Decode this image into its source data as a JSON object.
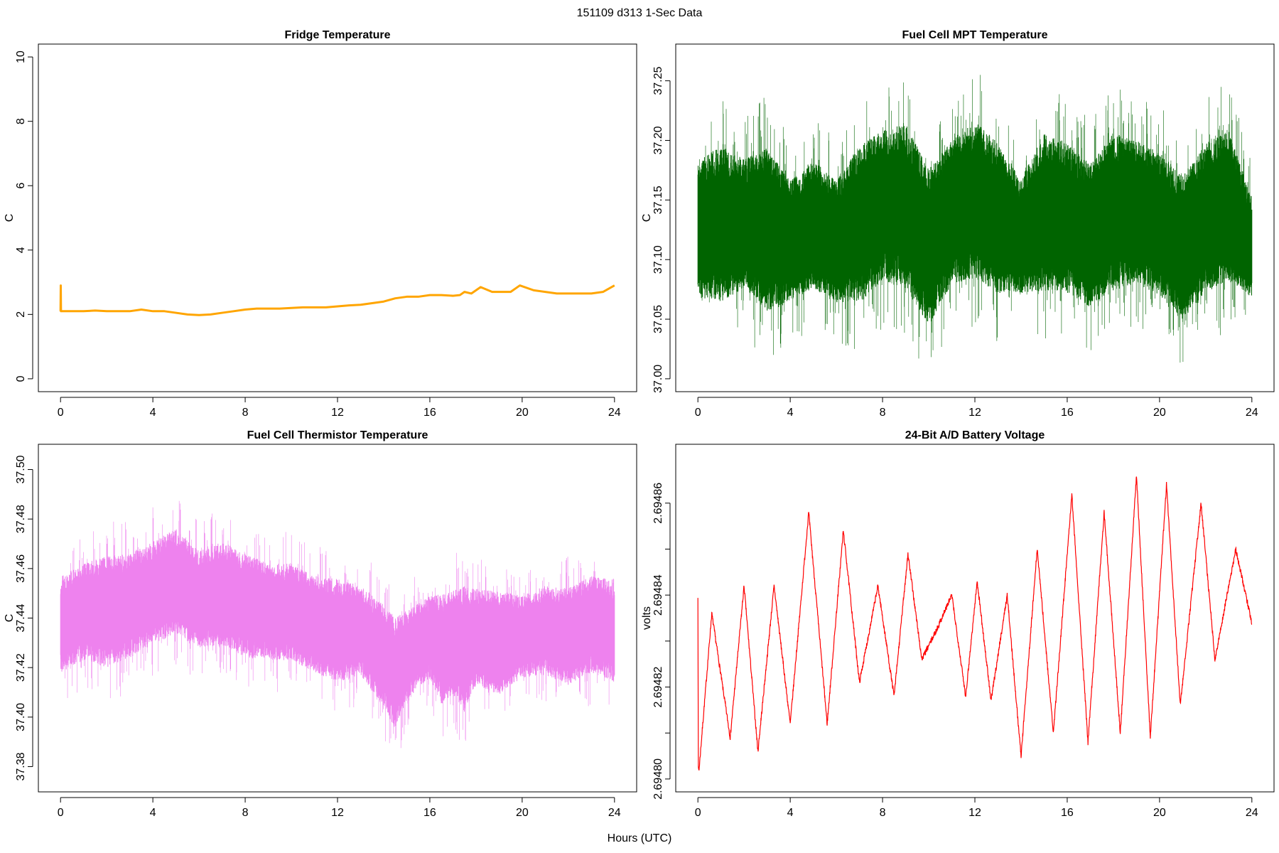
{
  "figure": {
    "title": "151109   d313   1-Sec Data",
    "xlabel": "Hours (UTC)"
  },
  "chart_data": [
    {
      "id": "fridge",
      "type": "line",
      "title": "Fridge Temperature",
      "xlabel": "",
      "ylabel": "C",
      "color": "#FFA500",
      "xlim": [
        0,
        24
      ],
      "ylim": [
        0,
        10
      ],
      "xticks": [
        0,
        4,
        8,
        12,
        16,
        20,
        24
      ],
      "yticks": [
        0,
        2,
        4,
        6,
        8,
        10
      ],
      "ytick_labels": [
        "0",
        "2",
        "4",
        "6",
        "8",
        "10"
      ],
      "series": [
        {
          "name": "Fridge Temperature",
          "x": [
            0,
            0.01,
            0.02,
            0.5,
            1,
            1.5,
            2,
            2.5,
            3,
            3.5,
            4,
            4.5,
            5,
            5.5,
            6,
            6.5,
            7,
            7.5,
            8,
            8.5,
            9,
            9.5,
            10,
            10.5,
            11,
            11.5,
            12,
            12.5,
            13,
            13.5,
            14,
            14.5,
            15,
            15.5,
            16,
            16.5,
            17,
            17.3,
            17.5,
            17.8,
            18.2,
            18.7,
            19.5,
            19.9,
            20.5,
            21,
            21.5,
            22,
            22.5,
            23,
            23.5,
            24
          ],
          "y": [
            2.1,
            2.9,
            2.1,
            2.1,
            2.1,
            2.12,
            2.1,
            2.1,
            2.1,
            2.15,
            2.1,
            2.1,
            2.05,
            2.0,
            1.98,
            2.0,
            2.05,
            2.1,
            2.15,
            2.18,
            2.18,
            2.18,
            2.2,
            2.22,
            2.22,
            2.22,
            2.25,
            2.28,
            2.3,
            2.35,
            2.4,
            2.5,
            2.55,
            2.55,
            2.6,
            2.6,
            2.58,
            2.6,
            2.7,
            2.65,
            2.85,
            2.7,
            2.7,
            2.9,
            2.75,
            2.7,
            2.65,
            2.65,
            2.65,
            2.65,
            2.7,
            2.9
          ]
        }
      ]
    },
    {
      "id": "mpt",
      "type": "line",
      "title": "Fuel Cell MPT Temperature",
      "xlabel": "",
      "ylabel": "C",
      "color": "#006400",
      "xlim": [
        0,
        24
      ],
      "ylim": [
        37.0,
        37.27
      ],
      "xticks": [
        0,
        4,
        8,
        12,
        16,
        20,
        24
      ],
      "yticks": [
        37.0,
        37.05,
        37.1,
        37.15,
        37.2,
        37.25
      ],
      "ytick_labels": [
        "37.00",
        "37.05",
        "37.10",
        "37.15",
        "37.20",
        "37.25"
      ],
      "noise": {
        "center": 37.115,
        "core_half_width": 0.04,
        "spike_low_min": 37.0,
        "spike_high_max": 37.27
      },
      "series": [
        {
          "name": "envelope",
          "x": [
            0,
            1,
            2,
            3,
            4,
            5,
            6,
            7,
            8,
            9,
            10,
            11,
            12,
            13,
            14,
            15,
            16,
            17,
            18,
            19,
            20,
            21,
            22,
            23,
            24
          ],
          "y_min": [
            37.03,
            37.02,
            37.04,
            37.01,
            37.03,
            37.04,
            37.03,
            37.02,
            37.04,
            37.03,
            37.0,
            37.04,
            37.04,
            37.03,
            37.04,
            37.03,
            37.03,
            37.02,
            37.03,
            37.04,
            37.03,
            37.01,
            37.03,
            37.04,
            37.04
          ],
          "y_max": [
            37.22,
            37.24,
            37.22,
            37.24,
            37.2,
            37.22,
            37.2,
            37.24,
            37.25,
            37.26,
            37.22,
            37.24,
            37.26,
            37.24,
            37.2,
            37.25,
            37.24,
            37.22,
            37.25,
            37.24,
            37.23,
            37.21,
            37.24,
            37.25,
            37.18
          ]
        }
      ]
    },
    {
      "id": "thermistor",
      "type": "line",
      "title": "Fuel Cell Thermistor Temperature",
      "xlabel": "",
      "ylabel": "C",
      "color": "#EE82EE",
      "xlim": [
        0,
        24
      ],
      "ylim": [
        37.375,
        37.505
      ],
      "xticks": [
        0,
        4,
        8,
        12,
        16,
        20,
        24
      ],
      "yticks": [
        37.38,
        37.4,
        37.42,
        37.44,
        37.46,
        37.48,
        37.5
      ],
      "ytick_labels": [
        "37.38",
        "37.40",
        "37.42",
        "37.44",
        "37.46",
        "37.48",
        "37.50"
      ],
      "series": [
        {
          "name": "envelope",
          "x": [
            0,
            1,
            2,
            3,
            4,
            5,
            6,
            7,
            8,
            9,
            10,
            11,
            12,
            13,
            14,
            14.5,
            15,
            16,
            16.5,
            17,
            17.5,
            18,
            19,
            20,
            21,
            22,
            23,
            24
          ],
          "y_min": [
            37.405,
            37.41,
            37.405,
            37.41,
            37.415,
            37.42,
            37.415,
            37.415,
            37.41,
            37.41,
            37.41,
            37.405,
            37.4,
            37.405,
            37.39,
            37.38,
            37.395,
            37.405,
            37.39,
            37.395,
            37.385,
            37.4,
            37.395,
            37.405,
            37.405,
            37.4,
            37.405,
            37.4
          ],
          "y_max": [
            37.47,
            37.475,
            37.48,
            37.48,
            37.485,
            37.49,
            37.48,
            37.485,
            37.48,
            37.475,
            37.475,
            37.47,
            37.47,
            37.465,
            37.46,
            37.455,
            37.455,
            37.46,
            37.465,
            37.465,
            37.47,
            37.465,
            37.465,
            37.46,
            37.465,
            37.465,
            37.47,
            37.47
          ]
        }
      ]
    },
    {
      "id": "battery",
      "type": "line",
      "title": "24-Bit A/D Battery Voltage",
      "xlabel": "",
      "ylabel": "volts",
      "color": "#FF0000",
      "xlim": [
        0,
        24
      ],
      "ylim": [
        2.6948,
        2.69487
      ],
      "xticks": [
        0,
        4,
        8,
        12,
        16,
        20,
        24
      ],
      "yticks": [
        2.6948,
        2.69481,
        2.69482,
        2.69483,
        2.69484,
        2.69485,
        2.69486
      ],
      "ytick_labels": [
        "2.69480",
        "",
        "2.69482",
        "",
        "2.69484",
        "",
        "2.69486"
      ],
      "series": [
        {
          "name": "Battery Voltage",
          "x": [
            0,
            0.02,
            0.05,
            0.6,
            1.4,
            2,
            2.6,
            3.3,
            4,
            4.8,
            5.6,
            6.3,
            7,
            7.8,
            8.5,
            9.1,
            9.7,
            10.3,
            11,
            11.6,
            12.1,
            12.7,
            13.4,
            14,
            14.7,
            15.4,
            16.2,
            16.9,
            17.6,
            18.3,
            19,
            19.6,
            20.3,
            20.9,
            21.8,
            22.4,
            23.3,
            24
          ],
          "y": [
            2.69484,
            2.694802,
            2.694802,
            2.694836,
            2.694809,
            2.694842,
            2.694806,
            2.694842,
            2.694812,
            2.694858,
            2.694812,
            2.694854,
            2.694821,
            2.694842,
            2.694818,
            2.694849,
            2.694826,
            2.694832,
            2.69484,
            2.694818,
            2.694843,
            2.694817,
            2.69484,
            2.694805,
            2.69485,
            2.69481,
            2.694862,
            2.694808,
            2.694858,
            2.69481,
            2.694866,
            2.694809,
            2.694864,
            2.694816,
            2.69486,
            2.694826,
            2.69485,
            2.694834
          ]
        }
      ]
    }
  ]
}
